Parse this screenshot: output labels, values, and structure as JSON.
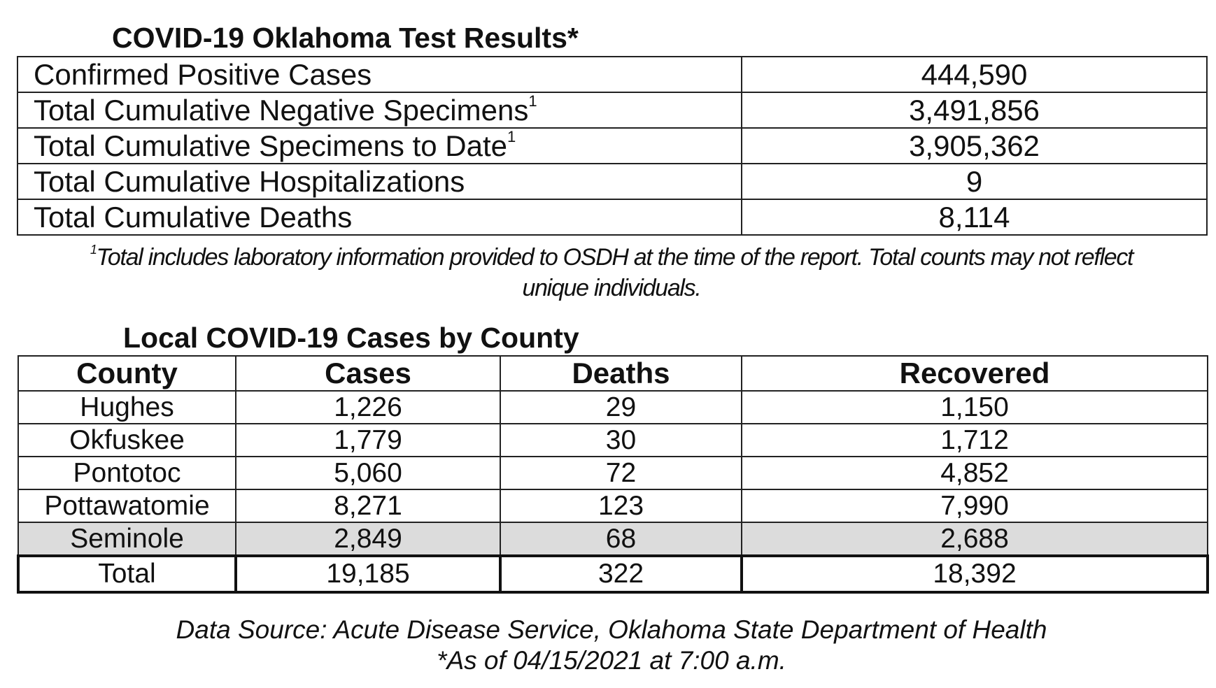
{
  "test_results": {
    "title": "COVID-19 Oklahoma Test Results*",
    "rows": [
      {
        "label": "Confirmed Positive Cases",
        "sup": "",
        "value": "444,590"
      },
      {
        "label": "Total Cumulative Negative Specimens",
        "sup": "1",
        "value": "3,491,856"
      },
      {
        "label": "Total Cumulative Specimens to Date",
        "sup": "1",
        "value": "3,905,362"
      },
      {
        "label": "Total Cumulative Hospitalizations",
        "sup": "",
        "value": "9"
      },
      {
        "label": "Total Cumulative Deaths",
        "sup": "",
        "value": "8,114"
      }
    ],
    "footnote_marker": "1",
    "footnote_line1": "Total includes laboratory information provided to OSDH at the time of the report. Total counts may not reflect",
    "footnote_line2": "unique individuals."
  },
  "county_cases": {
    "title": "Local COVID-19 Cases by County",
    "headers": [
      "County",
      "Cases",
      "Deaths",
      "Recovered"
    ],
    "rows": [
      {
        "county": "Hughes",
        "cases": "1,226",
        "deaths": "29",
        "recovered": "1,150"
      },
      {
        "county": "Okfuskee",
        "cases": "1,779",
        "deaths": "30",
        "recovered": "1,712"
      },
      {
        "county": "Pontotoc",
        "cases": "5,060",
        "deaths": "72",
        "recovered": "4,852"
      },
      {
        "county": "Pottawatomie",
        "cases": "8,271",
        "deaths": "123",
        "recovered": "7,990"
      },
      {
        "county": "Seminole",
        "cases": "2,849",
        "deaths": "68",
        "recovered": "2,688"
      }
    ],
    "total": {
      "county": "Total",
      "cases": "19,185",
      "deaths": "322",
      "recovered": "18,392"
    },
    "shaded_row_color": "#dcdcdc"
  },
  "footer": {
    "source": "Data Source: Acute Disease Service, Oklahoma State Department of Health",
    "as_of": "*As of 04/15/2021 at 7:00 a.m."
  }
}
